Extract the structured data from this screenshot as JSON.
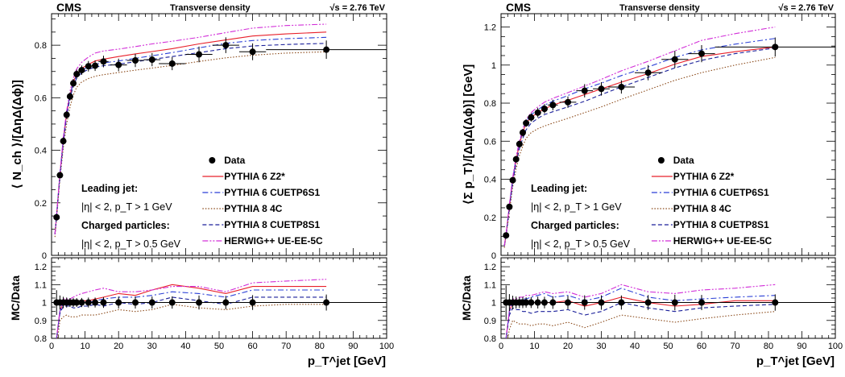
{
  "chart_data": [
    {
      "type": "scatter",
      "header": {
        "experiment": "CMS",
        "observable": "Transverse density",
        "energy": "√s = 2.76 TeV"
      },
      "ylabel": "⟨ N_ch ⟩/[ΔηΔ(Δϕ)]",
      "ratio_ylabel": "MC/Data",
      "xlabel": "p_T^jet [GeV]",
      "xlim": [
        0,
        100
      ],
      "ylim": [
        0,
        0.92
      ],
      "ratio_ylim": [
        0.8,
        1.25
      ],
      "x_ticks": [
        "0",
        "10",
        "20",
        "30",
        "40",
        "50",
        "60",
        "70",
        "80",
        "90",
        "100"
      ],
      "y_ticks": [
        "0",
        "0.2",
        "0.4",
        "0.6",
        "0.8"
      ],
      "ratio_ticks": [
        "0.8",
        "0.9",
        "1",
        "1.1",
        "1.2"
      ],
      "selection_text": [
        "Leading jet:",
        "|η| < 2, p_T > 1 GeV",
        "Charged particles:",
        "|η| < 2, p_T > 0.5 GeV"
      ],
      "legend": [
        "Data",
        "PYTHIA 6 Z2*",
        "PYTHIA 6 CUETP6S1",
        "PYTHIA 8 4C",
        "PYTHIA 8 CUETP8S1",
        "HERWIG++ UE-EE-5C"
      ],
      "data": {
        "x": [
          1.5,
          2.5,
          3.5,
          4.5,
          5.5,
          6.5,
          7.5,
          9,
          11,
          13,
          15.5,
          20,
          25,
          30,
          36,
          44,
          52,
          60,
          82
        ],
        "y": [
          0.145,
          0.305,
          0.435,
          0.535,
          0.605,
          0.655,
          0.69,
          0.705,
          0.72,
          0.722,
          0.738,
          0.725,
          0.742,
          0.745,
          0.73,
          0.765,
          0.8,
          0.775,
          0.783
        ],
        "yerr": [
          0.01,
          0.012,
          0.014,
          0.015,
          0.015,
          0.016,
          0.017,
          0.018,
          0.02,
          0.02,
          0.022,
          0.024,
          0.025,
          0.025,
          0.025,
          0.03,
          0.03,
          0.032,
          0.035
        ],
        "xerr": [
          0.5,
          0.5,
          0.5,
          0.5,
          0.5,
          0.5,
          0.5,
          1,
          1,
          1,
          1.5,
          2.5,
          2.5,
          2.5,
          4,
          4,
          4,
          4,
          18
        ]
      },
      "x_model": [
        1,
        1.5,
        2.5,
        3.5,
        4.5,
        5.5,
        6.5,
        7.5,
        9,
        11,
        13,
        15.5,
        20,
        25,
        30,
        36,
        44,
        52,
        60,
        70,
        82
      ],
      "series": [
        {
          "name": "PYTHIA 6 Z2*",
          "color": "#e8202a",
          "dash": "solid",
          "values": [
            0.08,
            0.15,
            0.31,
            0.44,
            0.54,
            0.61,
            0.66,
            0.69,
            0.712,
            0.727,
            0.74,
            0.747,
            0.757,
            0.767,
            0.776,
            0.787,
            0.805,
            0.82,
            0.835,
            0.843,
            0.85
          ]
        },
        {
          "name": "PYTHIA 6 CUETP6S1",
          "color": "#2a3fd6",
          "dash": "dashdot",
          "values": [
            0.08,
            0.15,
            0.31,
            0.44,
            0.54,
            0.61,
            0.655,
            0.685,
            0.705,
            0.718,
            0.728,
            0.733,
            0.74,
            0.75,
            0.76,
            0.772,
            0.79,
            0.807,
            0.818,
            0.825,
            0.83
          ]
        },
        {
          "name": "PYTHIA 8 4C",
          "color": "#8b4a1a",
          "dash": "dotted",
          "values": [
            0.07,
            0.14,
            0.29,
            0.41,
            0.5,
            0.565,
            0.61,
            0.64,
            0.66,
            0.673,
            0.682,
            0.688,
            0.696,
            0.705,
            0.713,
            0.723,
            0.738,
            0.752,
            0.762,
            0.77,
            0.775
          ]
        },
        {
          "name": "PYTHIA 8 CUETP8S1",
          "color": "#1a1f9a",
          "dash": "dashed",
          "values": [
            0.08,
            0.15,
            0.3,
            0.43,
            0.53,
            0.6,
            0.645,
            0.675,
            0.695,
            0.708,
            0.717,
            0.722,
            0.728,
            0.737,
            0.746,
            0.757,
            0.772,
            0.787,
            0.797,
            0.803,
            0.807
          ]
        },
        {
          "name": "HERWIG++ UE-EE-5C",
          "color": "#d22ed8",
          "dash": "dashdotdot",
          "values": [
            0.08,
            0.15,
            0.31,
            0.45,
            0.55,
            0.625,
            0.675,
            0.71,
            0.735,
            0.755,
            0.77,
            0.778,
            0.785,
            0.795,
            0.805,
            0.815,
            0.83,
            0.848,
            0.865,
            0.875,
            0.88
          ]
        }
      ],
      "ratios": [
        [
          0.6,
          0.8,
          0.95,
          1.0,
          1.0,
          1.0,
          1.0,
          1.0,
          1.01,
          1.01,
          1.02,
          1.03,
          1.05,
          1.04,
          1.07,
          1.1,
          1.08,
          1.05,
          1.09,
          1.09,
          1.09
        ],
        [
          0.6,
          0.8,
          0.95,
          1.0,
          1.0,
          1.0,
          0.99,
          0.99,
          1.0,
          1.0,
          1.01,
          1.02,
          1.03,
          1.03,
          1.04,
          1.06,
          1.05,
          1.03,
          1.07,
          1.07,
          1.07
        ],
        [
          0.55,
          0.75,
          0.9,
          0.92,
          0.93,
          0.92,
          0.92,
          0.92,
          0.93,
          0.93,
          0.93,
          0.94,
          0.96,
          0.95,
          0.96,
          0.99,
          0.97,
          0.96,
          0.98,
          0.99,
          0.99
        ],
        [
          0.6,
          0.8,
          0.94,
          0.98,
          0.98,
          0.98,
          0.97,
          0.97,
          0.98,
          0.98,
          0.99,
          0.98,
          1.0,
          0.99,
          1.0,
          1.03,
          1.01,
          0.99,
          1.03,
          1.03,
          1.03
        ],
        [
          0.6,
          0.8,
          0.96,
          1.02,
          1.02,
          1.02,
          1.03,
          1.04,
          1.05,
          1.06,
          1.07,
          1.08,
          1.06,
          1.06,
          1.07,
          1.09,
          1.09,
          1.06,
          1.11,
          1.12,
          1.13
        ]
      ]
    },
    {
      "type": "scatter",
      "header": {
        "experiment": "CMS",
        "observable": "Transverse density",
        "energy": "√s = 2.76 TeV"
      },
      "ylabel": "⟨Σ p_T⟩/[ΔηΔ(Δϕ)] [GeV]",
      "ratio_ylabel": "MC/Data",
      "xlabel": "p_T^jet [GeV]",
      "xlim": [
        0,
        100
      ],
      "ylim": [
        0,
        1.27
      ],
      "ratio_ylim": [
        0.8,
        1.25
      ],
      "x_ticks": [
        "0",
        "10",
        "20",
        "30",
        "40",
        "50",
        "60",
        "70",
        "80",
        "90",
        "100"
      ],
      "y_ticks": [
        "0",
        "0.2",
        "0.4",
        "0.6",
        "0.8",
        "1",
        "1.2"
      ],
      "ratio_ticks": [
        "0.8",
        "0.9",
        "1",
        "1.1",
        "1.2"
      ],
      "selection_text": [
        "Leading jet:",
        "|η| < 2, p_T > 1 GeV",
        "Charged particles:",
        "|η| < 2, p_T > 0.5 GeV"
      ],
      "legend": [
        "Data",
        "PYTHIA 6 Z2*",
        "PYTHIA 6 CUETP6S1",
        "PYTHIA 8 4C",
        "PYTHIA 8 CUETP8S1",
        "HERWIG++ UE-EE-5C"
      ],
      "data": {
        "x": [
          1.5,
          2.5,
          3.5,
          4.5,
          5.5,
          6.5,
          7.5,
          9,
          11,
          13,
          15.5,
          20,
          25,
          30,
          36,
          44,
          52,
          60,
          82
        ],
        "y": [
          0.105,
          0.255,
          0.395,
          0.505,
          0.585,
          0.645,
          0.695,
          0.725,
          0.75,
          0.77,
          0.79,
          0.805,
          0.865,
          0.875,
          0.885,
          0.96,
          1.03,
          1.06,
          1.095
        ],
        "yerr": [
          0.01,
          0.012,
          0.015,
          0.017,
          0.018,
          0.02,
          0.02,
          0.022,
          0.025,
          0.025,
          0.028,
          0.03,
          0.035,
          0.035,
          0.035,
          0.04,
          0.045,
          0.045,
          0.05
        ],
        "xerr": [
          0.5,
          0.5,
          0.5,
          0.5,
          0.5,
          0.5,
          0.5,
          1,
          1,
          1,
          1.5,
          2.5,
          2.5,
          2.5,
          4,
          4,
          4,
          4,
          18
        ]
      },
      "x_model": [
        1,
        1.5,
        2.5,
        3.5,
        4.5,
        5.5,
        6.5,
        7.5,
        9,
        11,
        13,
        15.5,
        20,
        25,
        30,
        36,
        44,
        52,
        60,
        70,
        82
      ],
      "series": [
        {
          "name": "PYTHIA 6 Z2*",
          "color": "#e8202a",
          "dash": "solid",
          "values": [
            0.05,
            0.11,
            0.26,
            0.4,
            0.5,
            0.585,
            0.645,
            0.695,
            0.725,
            0.75,
            0.77,
            0.79,
            0.815,
            0.845,
            0.875,
            0.91,
            0.955,
            1.005,
            1.045,
            1.07,
            1.095
          ]
        },
        {
          "name": "PYTHIA 6 CUETP6S1",
          "color": "#2a3fd6",
          "dash": "dashdot",
          "values": [
            0.05,
            0.11,
            0.26,
            0.4,
            0.51,
            0.59,
            0.655,
            0.705,
            0.74,
            0.765,
            0.79,
            0.81,
            0.84,
            0.875,
            0.905,
            0.945,
            0.99,
            1.04,
            1.08,
            1.11,
            1.14
          ]
        },
        {
          "name": "PYTHIA 8 4C",
          "color": "#8b4a1a",
          "dash": "dotted",
          "values": [
            0.04,
            0.1,
            0.23,
            0.36,
            0.455,
            0.525,
            0.575,
            0.615,
            0.645,
            0.665,
            0.68,
            0.695,
            0.72,
            0.75,
            0.78,
            0.82,
            0.87,
            0.92,
            0.96,
            1.0,
            1.04
          ]
        },
        {
          "name": "PYTHIA 8 CUETP8S1",
          "color": "#1a1f9a",
          "dash": "dashed",
          "values": [
            0.05,
            0.105,
            0.25,
            0.385,
            0.485,
            0.56,
            0.615,
            0.66,
            0.695,
            0.72,
            0.74,
            0.755,
            0.78,
            0.81,
            0.845,
            0.885,
            0.935,
            0.985,
            1.025,
            1.06,
            1.09
          ]
        },
        {
          "name": "HERWIG++ UE-EE-5C",
          "color": "#d22ed8",
          "dash": "dashdotdot",
          "values": [
            0.05,
            0.11,
            0.27,
            0.41,
            0.52,
            0.6,
            0.665,
            0.715,
            0.75,
            0.78,
            0.805,
            0.825,
            0.855,
            0.89,
            0.925,
            0.97,
            1.02,
            1.075,
            1.13,
            1.165,
            1.2
          ]
        }
      ],
      "ratios": [
        [
          0.6,
          0.8,
          0.95,
          1.0,
          1.0,
          1.0,
          1.0,
          1.0,
          1.0,
          1.0,
          1.0,
          1.0,
          1.01,
          0.98,
          1.0,
          1.03,
          1.0,
          0.98,
          0.99,
          1.01,
          1.01
        ],
        [
          0.6,
          0.8,
          0.95,
          1.0,
          1.0,
          1.01,
          1.02,
          1.02,
          1.03,
          1.04,
          1.05,
          1.03,
          1.04,
          1.01,
          1.03,
          1.08,
          1.03,
          1.01,
          1.02,
          1.03,
          1.04
        ],
        [
          0.55,
          0.75,
          0.85,
          0.9,
          0.89,
          0.88,
          0.88,
          0.88,
          0.87,
          0.88,
          0.88,
          0.87,
          0.89,
          0.86,
          0.89,
          0.93,
          0.91,
          0.89,
          0.91,
          0.93,
          0.95
        ],
        [
          0.6,
          0.8,
          0.93,
          0.97,
          0.96,
          0.96,
          0.95,
          0.95,
          0.94,
          0.95,
          0.95,
          0.95,
          0.96,
          0.93,
          0.95,
          1.0,
          0.97,
          0.95,
          0.97,
          0.98,
          0.99
        ],
        [
          0.6,
          0.8,
          0.96,
          1.02,
          1.02,
          1.03,
          1.03,
          1.04,
          1.04,
          1.05,
          1.06,
          1.05,
          1.06,
          1.03,
          1.05,
          1.1,
          1.06,
          1.05,
          1.07,
          1.08,
          1.1
        ]
      ]
    }
  ]
}
